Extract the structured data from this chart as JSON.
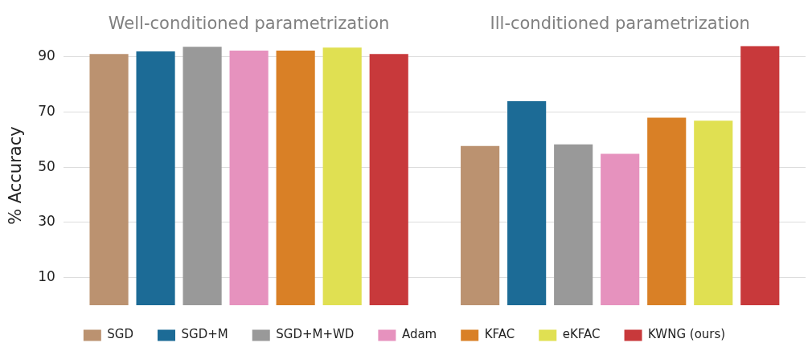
{
  "chart_data": {
    "type": "bar",
    "ylabel": "% Accuracy",
    "categories": [
      "Well-conditioned parametrization",
      "Ill-conditioned parametrization"
    ],
    "ylim": [
      0,
      94
    ],
    "yticks": [
      10,
      30,
      50,
      70,
      90
    ],
    "grid": "y",
    "legend": "bottom",
    "series": [
      {
        "name": "SGD",
        "color": "#bb9270",
        "values": [
          91.1,
          57.7
        ]
      },
      {
        "name": "SGD+M",
        "color": "#1c6b96",
        "values": [
          92.0,
          74.0
        ]
      },
      {
        "name": "SGD+M+WD",
        "color": "#999999",
        "values": [
          93.7,
          58.3
        ]
      },
      {
        "name": "Adam",
        "color": "#e692be",
        "values": [
          92.3,
          54.9
        ]
      },
      {
        "name": "KFAC",
        "color": "#d98026",
        "values": [
          92.3,
          68.0
        ]
      },
      {
        "name": "eKFAC",
        "color": "#e0e052",
        "values": [
          93.4,
          66.9
        ]
      },
      {
        "name": "KWNG (ours)",
        "color": "#c8393b",
        "values": [
          91.1,
          94.0
        ]
      }
    ]
  }
}
